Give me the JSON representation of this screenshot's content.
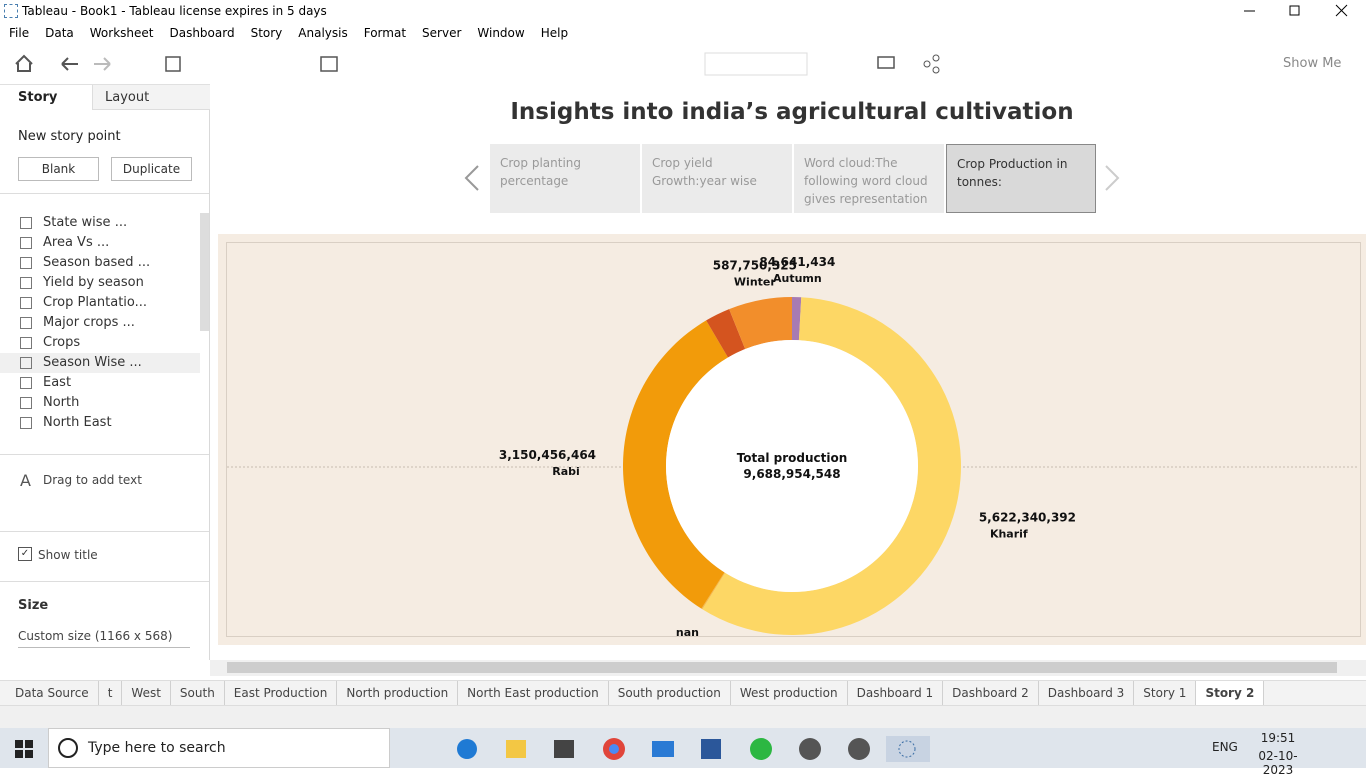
{
  "window": {
    "title": "Tableau - Book1 - Tableau license expires in 5 days"
  },
  "menu": [
    "File",
    "Data",
    "Worksheet",
    "Dashboard",
    "Story",
    "Analysis",
    "Format",
    "Server",
    "Window",
    "Help"
  ],
  "toolbar": {
    "show_me": "Show Me"
  },
  "sidebar": {
    "tabs": [
      "Story",
      "Layout"
    ],
    "new_story_point": "New story point",
    "buttons": [
      "Blank",
      "Duplicate"
    ],
    "items": [
      "State wise ...",
      "Area Vs ...",
      "Season based ...",
      "Yield by season",
      "Crop Plantatio...",
      "Major crops ...",
      "Crops",
      "Season Wise ...",
      "East",
      "North",
      "North East"
    ],
    "drag_text": "Drag to add text",
    "show_title": "Show title",
    "size_heading": "Size",
    "size_value": "Custom size (1166 x 568)"
  },
  "story": {
    "title": "Insights into india’s agricultural cultivation",
    "points": [
      "Crop planting percentage",
      "Crop yield Growth:year wise",
      "Word cloud:The following word cloud gives representation",
      "Crop Production in tonnes:"
    ],
    "active_point": 3
  },
  "chart_data": {
    "type": "donut",
    "categories": [
      "Autumn",
      "Kharif",
      "nan",
      "Rabi",
      null,
      "Winter"
    ],
    "values": [
      84641434,
      5622340392,
      10000000,
      3150456464,
      233765933,
      587750325
    ],
    "value_labels": [
      "84,641,434",
      "5,622,340,392",
      null,
      "3,150,456,464",
      null,
      "587,750,325"
    ],
    "colors": [
      "#a77bb3",
      "#fdd765",
      "#f5b94a",
      "#f29b0a",
      "#d4541f",
      "#f28e2b"
    ],
    "center_label": "Total production",
    "total": {
      "value": 9688954548,
      "label": "9,688,954,548"
    }
  },
  "sheet_tabs": [
    "Data Source",
    "t",
    "West",
    "South",
    "East Production",
    "North production",
    "North East production",
    "South production",
    "West production",
    "Dashboard 1",
    "Dashboard 2",
    "Dashboard 3",
    "Story 1",
    "Story 2"
  ],
  "active_tab": 13,
  "taskbar": {
    "search": "Type here to search",
    "language": "ENG",
    "time": "19:51",
    "date": "02-10-2023"
  }
}
